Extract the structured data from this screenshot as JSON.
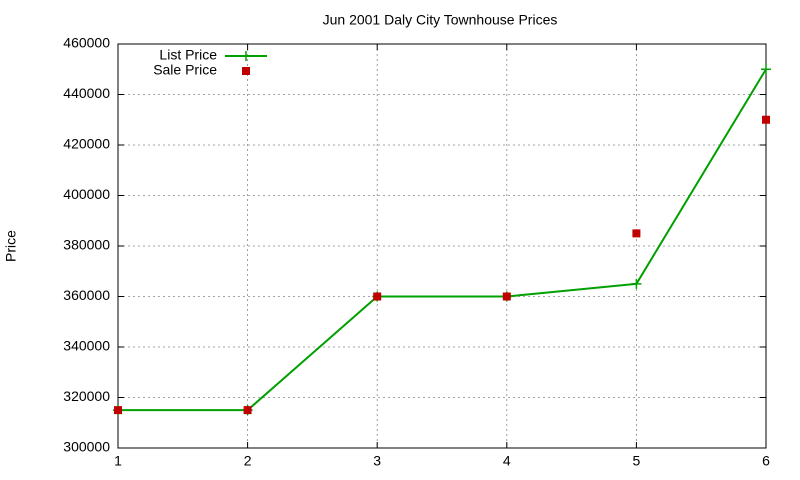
{
  "chart_data": {
    "type": "line",
    "title": "Jun 2001 Daly City Townhouse Prices",
    "y_label": "Price",
    "x": [
      1,
      2,
      3,
      4,
      5,
      6
    ],
    "series": [
      {
        "name": "List Price",
        "color": "#00a000",
        "style": "linespoints",
        "values": [
          315000,
          315000,
          360000,
          360000,
          365000,
          450000
        ]
      },
      {
        "name": "Sale Price",
        "color": "#c00000",
        "style": "points",
        "values": [
          315000,
          315000,
          360000,
          360000,
          385000,
          430000
        ]
      }
    ],
    "xlim": [
      1,
      6
    ],
    "xticks": [
      1,
      2,
      3,
      4,
      5,
      6
    ],
    "ylim": [
      300000,
      460000
    ],
    "yticks": [
      300000,
      320000,
      340000,
      360000,
      380000,
      400000,
      420000,
      440000,
      460000
    ],
    "grid": true,
    "legend": "top-left"
  }
}
